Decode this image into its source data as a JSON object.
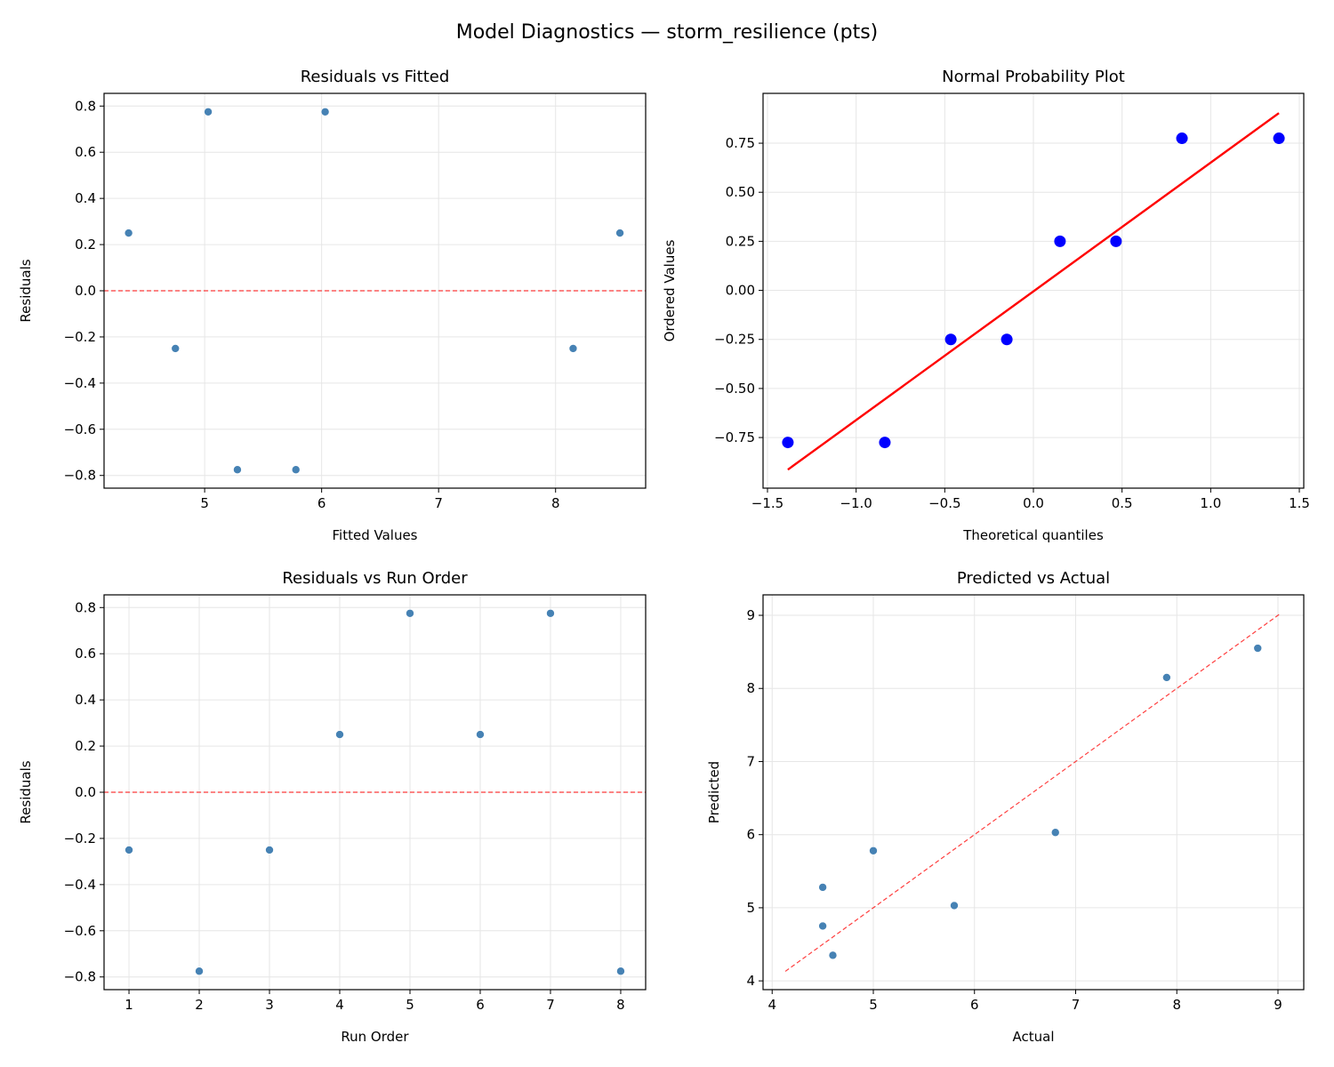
{
  "figure_title": "Model Diagnostics — storm_resilience (pts)",
  "colors": {
    "points": "#4682b4",
    "qq_points": "#0000ff",
    "qq_line": "#ff0000",
    "reference_line": "#ff0000",
    "grid": "#e6e6e6"
  },
  "chart_data": [
    {
      "type": "scatter",
      "title": "Residuals vs Fitted",
      "xlabel": "Fitted Values",
      "ylabel": "Residuals",
      "xlim": [
        4.14,
        8.77
      ],
      "ylim": [
        -0.855,
        0.855
      ],
      "xticks": [
        5,
        6,
        7,
        8
      ],
      "yticks": [
        -0.8,
        -0.6,
        -0.4,
        -0.2,
        0.0,
        0.2,
        0.4,
        0.6,
        0.8
      ],
      "grid": true,
      "x": [
        4.35,
        4.75,
        5.03,
        5.28,
        5.78,
        6.03,
        8.15,
        8.55
      ],
      "y": [
        0.25,
        -0.25,
        0.775,
        -0.775,
        -0.775,
        0.775,
        -0.25,
        0.25
      ],
      "hline": {
        "y": 0,
        "style": "dashed"
      }
    },
    {
      "type": "scatter",
      "title": "Normal Probability Plot",
      "xlabel": "Theoretical quantiles",
      "ylabel": "Ordered Values",
      "xlim": [
        -1.525,
        1.525
      ],
      "ylim": [
        -1.008,
        1.004
      ],
      "xticks": [
        -1.5,
        -1.0,
        -0.5,
        0.0,
        0.5,
        1.0,
        1.5
      ],
      "yticks": [
        -0.75,
        -0.5,
        -0.25,
        0.0,
        0.25,
        0.5,
        0.75
      ],
      "tick_decimals": [
        1,
        2
      ],
      "grid": true,
      "x": [
        -1.385,
        -0.838,
        -0.466,
        -0.15,
        0.15,
        0.466,
        0.838,
        1.385
      ],
      "y": [
        -0.775,
        -0.775,
        -0.25,
        -0.25,
        0.25,
        0.25,
        0.775,
        0.775
      ],
      "fit_line": {
        "slope": 0.656,
        "intercept": -0.005,
        "style": "solid"
      }
    },
    {
      "type": "scatter",
      "title": "Residuals vs Run Order",
      "xlabel": "Run Order",
      "ylabel": "Residuals",
      "xlim": [
        0.645,
        8.355
      ],
      "ylim": [
        -0.855,
        0.855
      ],
      "xticks": [
        1,
        2,
        3,
        4,
        5,
        6,
        7,
        8
      ],
      "yticks": [
        -0.8,
        -0.6,
        -0.4,
        -0.2,
        0.0,
        0.2,
        0.4,
        0.6,
        0.8
      ],
      "grid": true,
      "x": [
        1,
        2,
        3,
        4,
        5,
        6,
        7,
        8
      ],
      "y": [
        -0.25,
        -0.775,
        -0.25,
        0.25,
        0.775,
        0.25,
        0.775,
        -0.775
      ],
      "hline": {
        "y": 0,
        "style": "dashed"
      }
    },
    {
      "type": "scatter",
      "title": "Predicted vs Actual",
      "xlabel": "Actual",
      "ylabel": "Predicted",
      "xlim": [
        3.91,
        9.255
      ],
      "ylim": [
        3.88,
        9.28
      ],
      "xticks": [
        4,
        5,
        6,
        7,
        8,
        9
      ],
      "yticks": [
        4,
        5,
        6,
        7,
        8,
        9
      ],
      "grid": true,
      "x": [
        4.6,
        4.5,
        5.8,
        4.5,
        5.0,
        6.8,
        7.9,
        8.8
      ],
      "y": [
        4.35,
        4.75,
        5.03,
        5.28,
        5.78,
        6.03,
        8.15,
        8.55
      ],
      "identity_line": {
        "from": 4.13,
        "to": 9.02,
        "style": "dashed"
      }
    }
  ]
}
